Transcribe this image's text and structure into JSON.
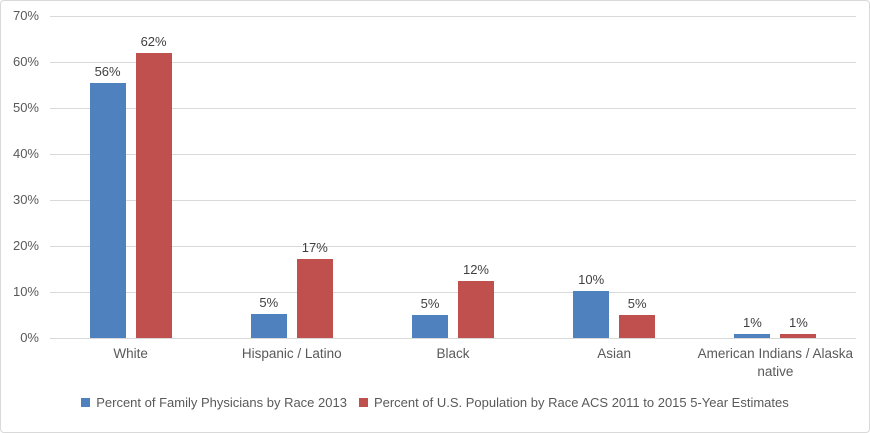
{
  "chart_data": {
    "type": "bar",
    "title": "",
    "xlabel": "",
    "ylabel": "",
    "ylim": [
      0,
      70
    ],
    "y_tick_step": 10,
    "y_tick_labels": [
      "0%",
      "10%",
      "20%",
      "30%",
      "40%",
      "50%",
      "60%",
      "70%"
    ],
    "grid": true,
    "legend_position": "bottom",
    "categories": [
      "White",
      "Hispanic / Latino",
      "Black",
      "Asian",
      "American Indians / Alaska native"
    ],
    "series": [
      {
        "name": "Percent of Family Physicians by Race 2013",
        "color": "#4e81bd",
        "values": [
          55.5,
          5.3,
          5.1,
          10.3,
          0.8
        ],
        "labels": [
          "56%",
          "5%",
          "5%",
          "10%",
          "1%"
        ]
      },
      {
        "name": "Percent of U.S. Population by Race ACS 2011 to 2015 5-Year Estimates",
        "color": "#c0504d",
        "values": [
          62.0,
          17.1,
          12.3,
          5.1,
          0.8
        ],
        "labels": [
          "62%",
          "17%",
          "12%",
          "5%",
          "1%"
        ]
      }
    ]
  },
  "colors": {
    "gridline": "#d9d9d9",
    "border": "#d9d9d9",
    "axis_text": "#595959",
    "data_label_text": "#404040",
    "background": "#ffffff"
  }
}
